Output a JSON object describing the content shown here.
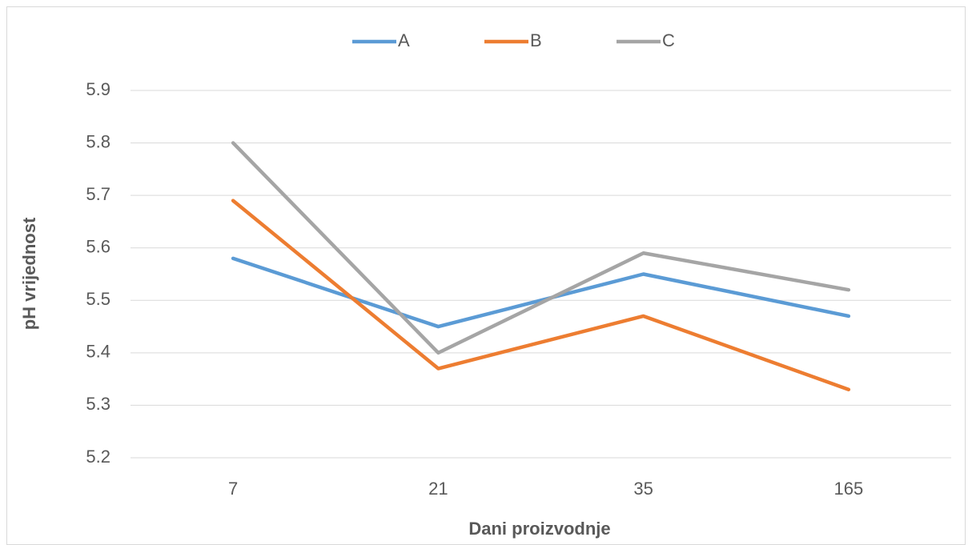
{
  "chart_data": {
    "type": "line",
    "x_label": "Dani proizvodnje",
    "y_label": "pH vrijednost",
    "categories": [
      "7",
      "21",
      "35",
      "165"
    ],
    "series": [
      {
        "name": "A",
        "color": "#5b9bd5",
        "values": [
          5.58,
          5.45,
          5.55,
          5.47
        ]
      },
      {
        "name": "B",
        "color": "#ed7d31",
        "values": [
          5.69,
          5.37,
          5.47,
          5.33
        ]
      },
      {
        "name": "C",
        "color": "#a5a5a5",
        "values": [
          5.8,
          5.4,
          5.59,
          5.52
        ]
      }
    ],
    "ylim": [
      5.2,
      5.9
    ],
    "yticks": [
      5.2,
      5.3,
      5.4,
      5.5,
      5.6,
      5.7,
      5.8,
      5.9
    ],
    "grid": true,
    "legend": "top"
  }
}
